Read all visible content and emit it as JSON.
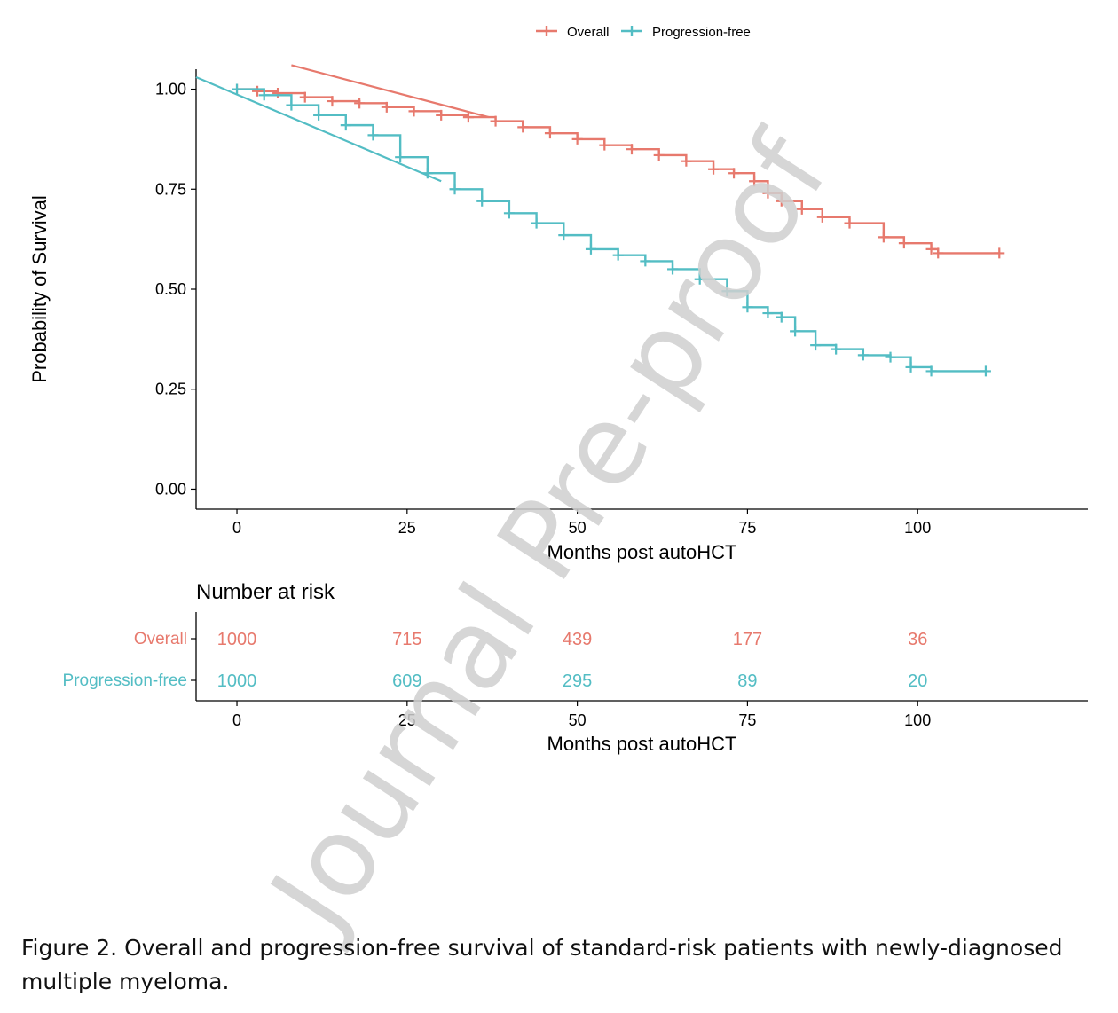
{
  "chart_data": {
    "type": "line",
    "subtype": "kaplan-meier",
    "ylabel": "Probability of Survival",
    "xlabel": "Months post autoHCT",
    "xlim": [
      -6,
      125
    ],
    "ylim": [
      -0.05,
      1.05
    ],
    "x_ticks": [
      "0",
      "25",
      "50",
      "75",
      "100"
    ],
    "x_tick_values": [
      0,
      25,
      50,
      75,
      100
    ],
    "y_ticks": [
      "0.00",
      "0.25",
      "0.50",
      "0.75",
      "1.00"
    ],
    "y_tick_values": [
      0,
      0.25,
      0.5,
      0.75,
      1.0
    ],
    "legend_position": "top",
    "grid": false,
    "series": [
      {
        "name": "Overall",
        "color": "#E7796D",
        "points": [
          [
            0,
            1.0
          ],
          [
            3,
            0.995
          ],
          [
            6,
            0.99
          ],
          [
            10,
            0.98
          ],
          [
            14,
            0.97
          ],
          [
            18,
            0.965
          ],
          [
            22,
            0.955
          ],
          [
            26,
            0.945
          ],
          [
            30,
            0.935
          ],
          [
            34,
            0.93
          ],
          [
            38,
            0.92
          ],
          [
            42,
            0.905
          ],
          [
            46,
            0.89
          ],
          [
            50,
            0.875
          ],
          [
            54,
            0.86
          ],
          [
            58,
            0.85
          ],
          [
            62,
            0.835
          ],
          [
            66,
            0.82
          ],
          [
            70,
            0.8
          ],
          [
            73,
            0.79
          ],
          [
            76,
            0.77
          ],
          [
            78,
            0.74
          ],
          [
            80,
            0.72
          ],
          [
            83,
            0.7
          ],
          [
            86,
            0.68
          ],
          [
            90,
            0.665
          ],
          [
            95,
            0.63
          ],
          [
            98,
            0.615
          ],
          [
            102,
            0.6
          ],
          [
            103,
            0.59
          ],
          [
            112,
            0.59
          ]
        ],
        "diagonal_line": [
          [
            8,
            1.06
          ],
          [
            37,
            0.93
          ]
        ]
      },
      {
        "name": "Progression-free",
        "color": "#53BDC4",
        "points": [
          [
            0,
            1.0
          ],
          [
            4,
            0.985
          ],
          [
            8,
            0.96
          ],
          [
            12,
            0.935
          ],
          [
            16,
            0.91
          ],
          [
            20,
            0.885
          ],
          [
            24,
            0.83
          ],
          [
            28,
            0.79
          ],
          [
            32,
            0.75
          ],
          [
            36,
            0.72
          ],
          [
            40,
            0.69
          ],
          [
            44,
            0.665
          ],
          [
            48,
            0.635
          ],
          [
            52,
            0.6
          ],
          [
            56,
            0.585
          ],
          [
            60,
            0.57
          ],
          [
            64,
            0.55
          ],
          [
            68,
            0.525
          ],
          [
            72,
            0.495
          ],
          [
            75,
            0.455
          ],
          [
            78,
            0.44
          ],
          [
            80,
            0.43
          ],
          [
            82,
            0.395
          ],
          [
            85,
            0.36
          ],
          [
            88,
            0.35
          ],
          [
            92,
            0.335
          ],
          [
            96,
            0.33
          ],
          [
            99,
            0.305
          ],
          [
            102,
            0.295
          ],
          [
            110,
            0.295
          ]
        ],
        "diagonal_line": [
          [
            -6,
            1.03
          ],
          [
            30,
            0.77
          ]
        ]
      }
    ],
    "risk_table": {
      "title": "Number at risk",
      "xlabel": "Months post autoHCT",
      "x_ticks": [
        "0",
        "25",
        "50",
        "75",
        "100"
      ],
      "rows": [
        {
          "name": "Overall",
          "color": "#E7796D",
          "values": [
            "1000",
            "715",
            "439",
            "177",
            "36"
          ]
        },
        {
          "name": "Progression-free",
          "color": "#53BDC4",
          "values": [
            "1000",
            "609",
            "295",
            "89",
            "20"
          ]
        }
      ]
    }
  },
  "watermark": "Journal Pre-proof",
  "caption": "Figure 2. Overall and progression-free survival of standard-risk patients with newly-diagnosed multiple myeloma."
}
